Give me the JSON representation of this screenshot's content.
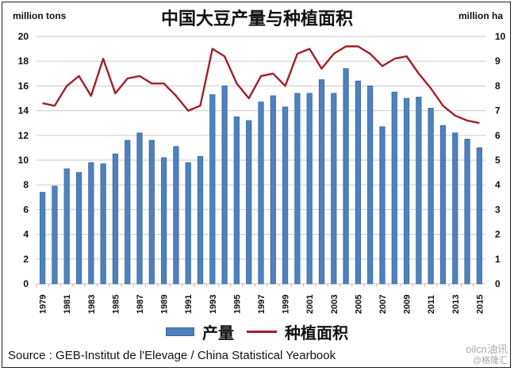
{
  "title": "中国大豆产量与种植面积",
  "left_axis_unit": "million tons",
  "right_axis_unit": "million ha",
  "legend": [
    {
      "label": "产量",
      "type": "bar",
      "color": "#4f81bd"
    },
    {
      "label": "种植面积",
      "type": "line",
      "color": "#a0202a"
    }
  ],
  "source": "Source : GEB-Institut de l'Elevage / China Statistical Yearbook",
  "watermark": {
    "line1": "oilcn油讯",
    "line2": "@格隆汇"
  },
  "chart_data": {
    "type": "bar+line",
    "title": "中国大豆产量与种植面积",
    "x": [
      1979,
      1980,
      1981,
      1982,
      1983,
      1984,
      1985,
      1986,
      1987,
      1988,
      1989,
      1990,
      1991,
      1992,
      1993,
      1994,
      1995,
      1996,
      1997,
      1998,
      1999,
      2000,
      2001,
      2002,
      2003,
      2004,
      2005,
      2006,
      2007,
      2008,
      2009,
      2010,
      2011,
      2012,
      2013,
      2014,
      2015
    ],
    "x_tick_labels": [
      "1979",
      "1981",
      "1983",
      "1985",
      "1987",
      "1989",
      "1991",
      "1993",
      "1995",
      "1997",
      "1999",
      "2001",
      "2003",
      "2005",
      "2007",
      "2009",
      "2011",
      "2013",
      "2015"
    ],
    "series": [
      {
        "name": "产量",
        "type": "bar",
        "axis": "left",
        "unit": "million tons",
        "values": [
          7.4,
          7.9,
          9.3,
          9.0,
          9.8,
          9.7,
          10.5,
          11.6,
          12.2,
          11.6,
          10.2,
          11.1,
          9.8,
          10.3,
          15.3,
          16.0,
          13.5,
          13.2,
          14.7,
          15.2,
          14.3,
          15.4,
          15.4,
          16.5,
          15.4,
          17.4,
          16.4,
          16.0,
          12.7,
          15.5,
          15.0,
          15.1,
          14.2,
          12.8,
          12.2,
          11.7,
          11.0
        ]
      },
      {
        "name": "种植面积",
        "type": "line",
        "axis": "right",
        "unit": "million ha",
        "values": [
          7.3,
          7.2,
          8.0,
          8.4,
          7.6,
          9.1,
          7.7,
          8.3,
          8.4,
          8.1,
          8.1,
          7.6,
          7.0,
          7.2,
          9.5,
          9.2,
          8.1,
          7.5,
          8.4,
          8.5,
          8.0,
          9.3,
          9.5,
          8.7,
          9.3,
          9.6,
          9.6,
          9.3,
          8.8,
          9.1,
          9.2,
          8.5,
          7.9,
          7.2,
          6.8,
          6.6,
          6.5
        ]
      }
    ],
    "ylabel_left": "million tons",
    "ylabel_right": "million ha",
    "ylim_left": [
      0,
      20
    ],
    "ylim_right": [
      0,
      10
    ],
    "yticks_left": [
      0,
      2,
      4,
      6,
      8,
      10,
      12,
      14,
      16,
      18,
      20
    ],
    "yticks_right": [
      0,
      1,
      2,
      3,
      4,
      5,
      6,
      7,
      8,
      9,
      10
    ],
    "grid": true,
    "legend_position": "bottom"
  }
}
